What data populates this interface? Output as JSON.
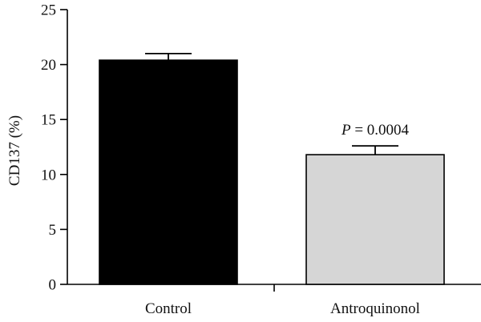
{
  "chart_data": {
    "type": "bar",
    "categories": [
      "Control",
      "Antroquinonol"
    ],
    "values": [
      20.4,
      11.8
    ],
    "errors": [
      0.6,
      0.8
    ],
    "colors": [
      "#000000",
      "#d6d6d6"
    ],
    "ylabel": "CD137 (%)",
    "xlabel": "",
    "ylim": [
      0,
      25
    ],
    "yticks": [
      0,
      5,
      10,
      15,
      20,
      25
    ],
    "annotation": {
      "prefix": "P",
      "text": " = 0.0004",
      "category": "Antroquinonol"
    },
    "grid": false
  }
}
